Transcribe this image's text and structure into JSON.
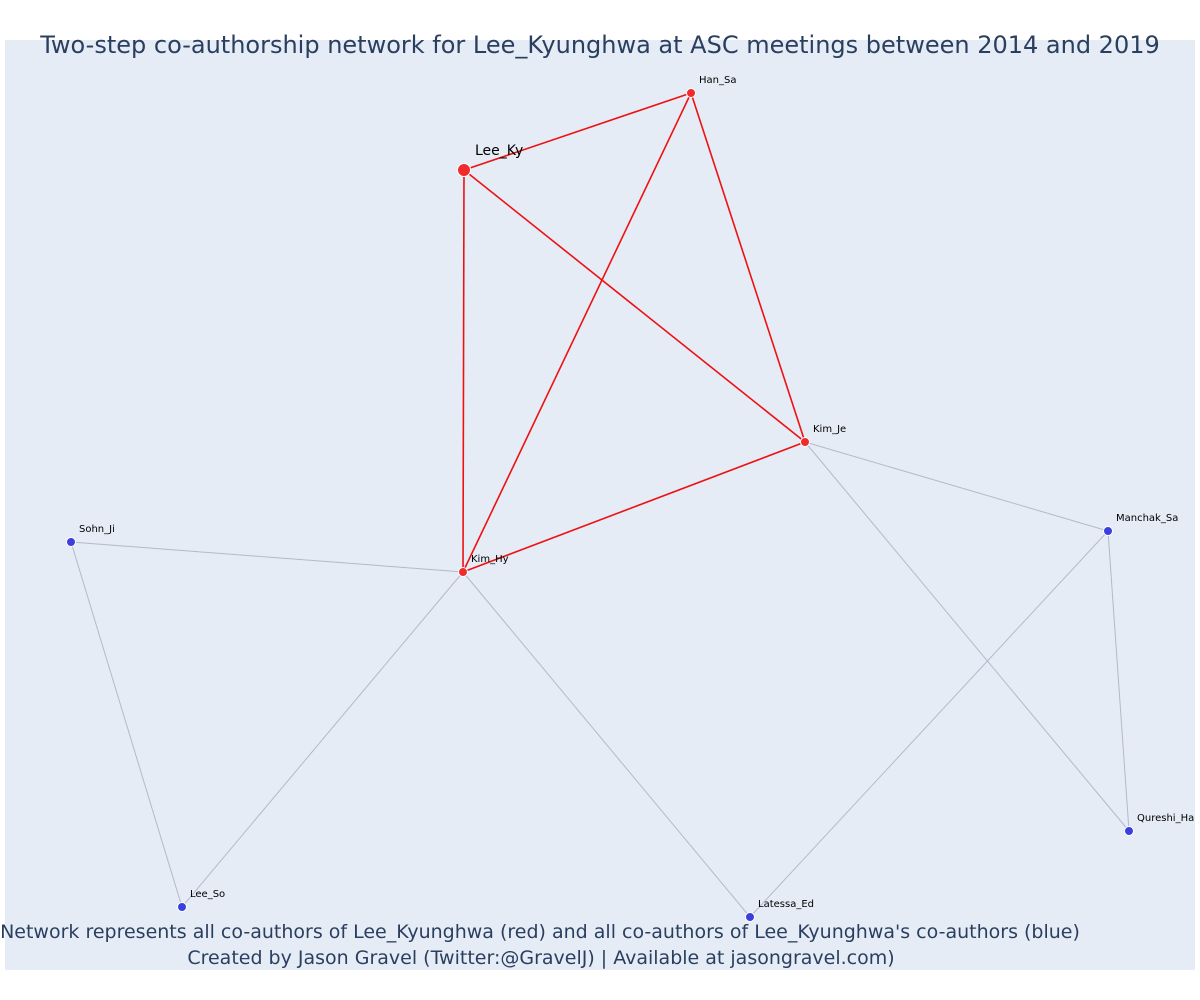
{
  "title": "Two-step co-authorship network for Lee_Kyunghwa at ASC meetings between 2014 and 2019",
  "caption": {
    "line1": "Network represents all co-authors of Lee_Kyunghwa (red) and all co-authors of Lee_Kyunghwa's co-authors (blue)",
    "line2": "Created by Jason Gravel (Twitter:@GravelJ) | Available at jasongravel.com)"
  },
  "colors": {
    "plot_background": "#e5ecf6",
    "coauthor_node": "#ef2b2b",
    "second_step_node": "#3a3fe0",
    "first_step_edge": "#ee1111",
    "second_step_edge": "#b5b8cc",
    "text": "#2a3f5f"
  },
  "nodes": [
    {
      "id": "Lee_Ky",
      "label": "Lee_Ky",
      "group": "focal"
    },
    {
      "id": "Han_Sa",
      "label": "Han_Sa",
      "group": "coauthor"
    },
    {
      "id": "Kim_Je",
      "label": "Kim_Je",
      "group": "coauthor"
    },
    {
      "id": "Kim_Hy",
      "label": "Kim_Hy",
      "group": "coauthor"
    },
    {
      "id": "Sohn_Ji",
      "label": "Sohn_Ji",
      "group": "second"
    },
    {
      "id": "Manchak_Sa",
      "label": "Manchak_Sa",
      "group": "second"
    },
    {
      "id": "Qureshi_Ha",
      "label": "Qureshi_Ha",
      "group": "second"
    },
    {
      "id": "Lee_So",
      "label": "Lee_So",
      "group": "second"
    },
    {
      "id": "Latessa_Ed",
      "label": "Latessa_Ed",
      "group": "second"
    }
  ],
  "edges": [
    {
      "source": "Lee_Ky",
      "target": "Han_Sa",
      "type": "first"
    },
    {
      "source": "Lee_Ky",
      "target": "Kim_Je",
      "type": "first"
    },
    {
      "source": "Lee_Ky",
      "target": "Kim_Hy",
      "type": "first"
    },
    {
      "source": "Han_Sa",
      "target": "Kim_Je",
      "type": "first"
    },
    {
      "source": "Han_Sa",
      "target": "Kim_Hy",
      "type": "first"
    },
    {
      "source": "Kim_Je",
      "target": "Kim_Hy",
      "type": "first"
    },
    {
      "source": "Kim_Je",
      "target": "Manchak_Sa",
      "type": "second"
    },
    {
      "source": "Kim_Je",
      "target": "Qureshi_Ha",
      "type": "second"
    },
    {
      "source": "Kim_Hy",
      "target": "Sohn_Ji",
      "type": "second"
    },
    {
      "source": "Kim_Hy",
      "target": "Lee_So",
      "type": "second"
    },
    {
      "source": "Kim_Hy",
      "target": "Latessa_Ed",
      "type": "second"
    },
    {
      "source": "Sohn_Ji",
      "target": "Lee_So",
      "type": "second"
    },
    {
      "source": "Manchak_Sa",
      "target": "Latessa_Ed",
      "type": "second"
    },
    {
      "source": "Manchak_Sa",
      "target": "Qureshi_Ha",
      "type": "second"
    }
  ]
}
